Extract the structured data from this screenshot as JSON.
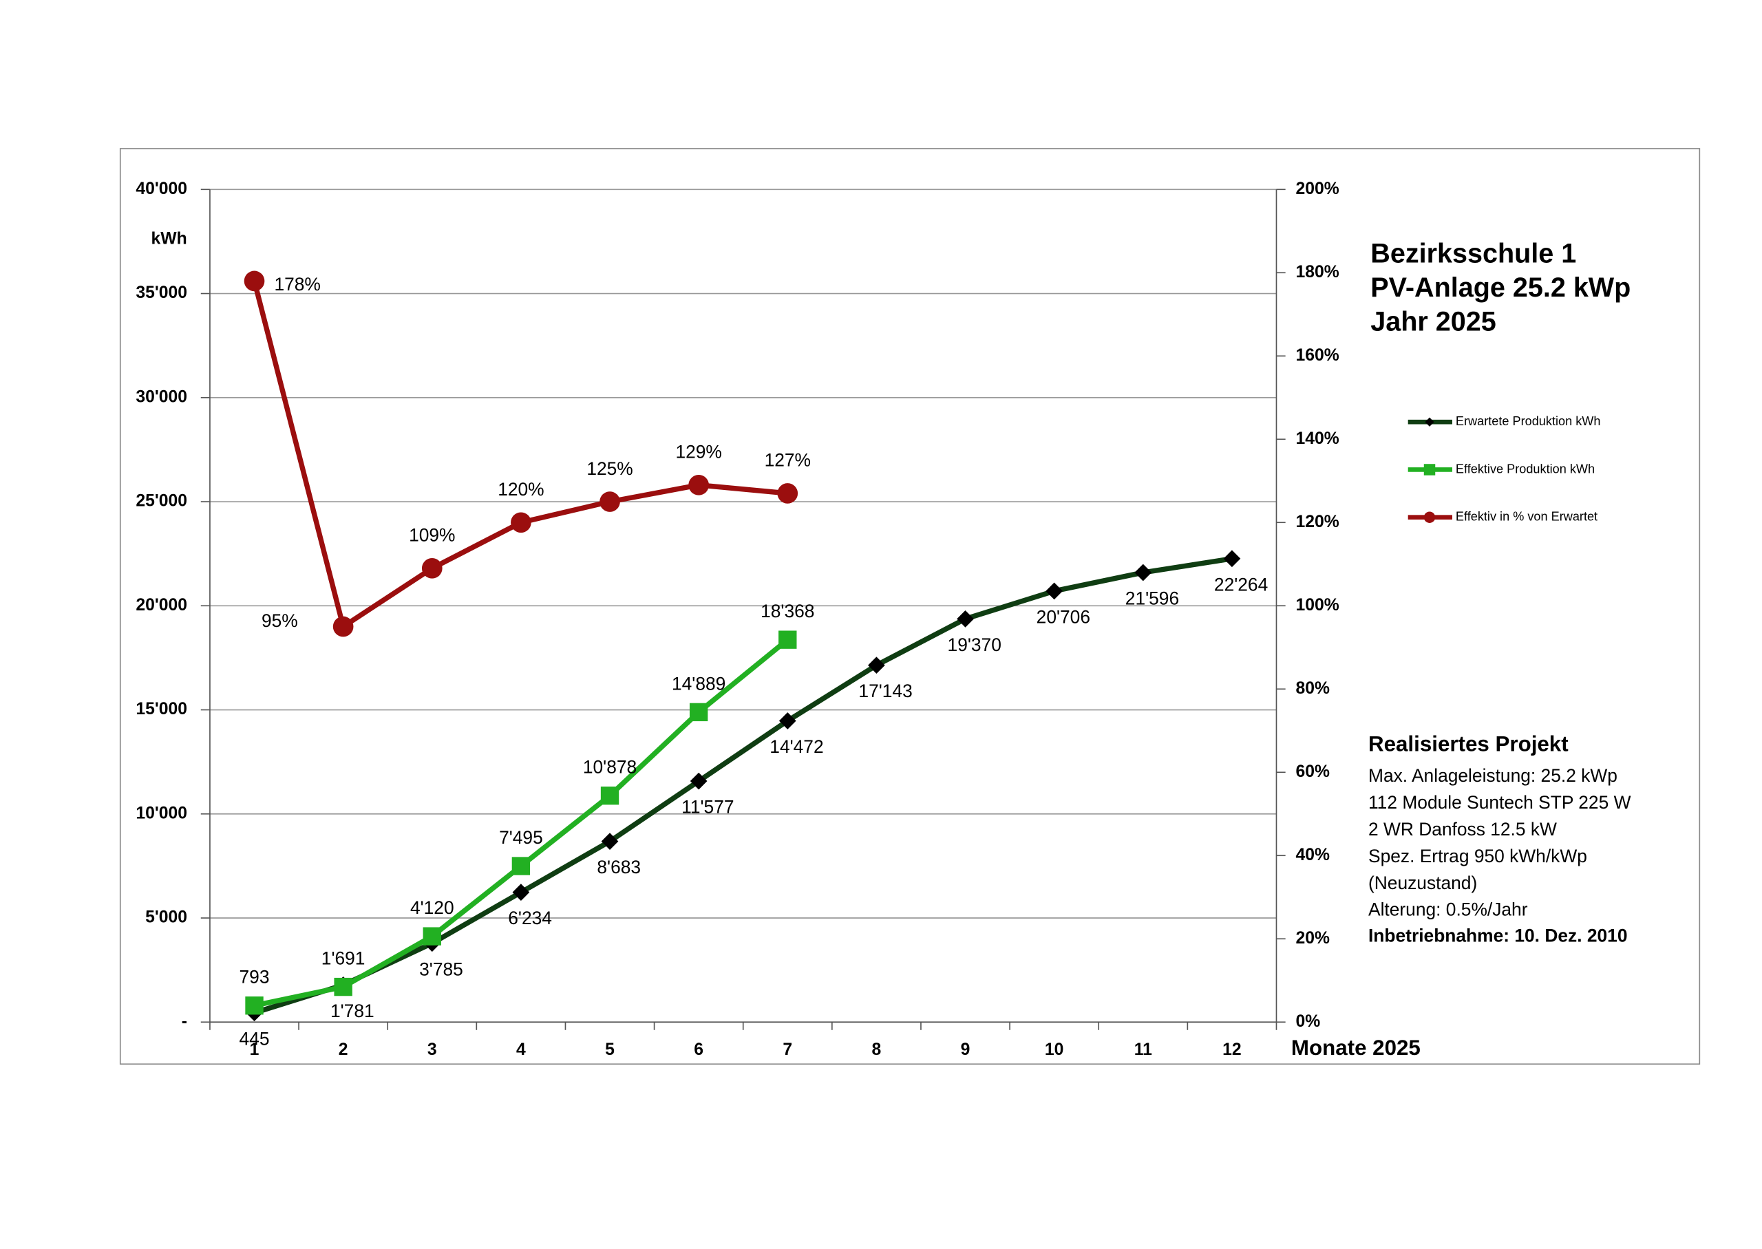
{
  "chart_data": {
    "type": "line",
    "title_lines": [
      "Bezirksschule 1",
      "PV-Anlage 25.2 kWp",
      "Jahr 2025"
    ],
    "y_label": "kWh",
    "x_label": "Monate 2025",
    "categories": [
      "1",
      "2",
      "3",
      "4",
      "5",
      "6",
      "7",
      "8",
      "9",
      "10",
      "11",
      "12"
    ],
    "ylim": [
      0,
      40000
    ],
    "yticks": [
      {
        "value": 0,
        "label": "-"
      },
      {
        "value": 5000,
        "label": "5'000"
      },
      {
        "value": 10000,
        "label": "10'000"
      },
      {
        "value": 15000,
        "label": "15'000"
      },
      {
        "value": 20000,
        "label": "20'000"
      },
      {
        "value": 25000,
        "label": "25'000"
      },
      {
        "value": 30000,
        "label": "30'000"
      },
      {
        "value": 35000,
        "label": "35'000"
      },
      {
        "value": 40000,
        "label": "40'000"
      }
    ],
    "y2lim": [
      0,
      200
    ],
    "y2ticks": [
      {
        "value": 0,
        "label": "0%"
      },
      {
        "value": 20,
        "label": "20%"
      },
      {
        "value": 40,
        "label": "40%"
      },
      {
        "value": 60,
        "label": "60%"
      },
      {
        "value": 80,
        "label": "80%"
      },
      {
        "value": 100,
        "label": "100%"
      },
      {
        "value": 120,
        "label": "120%"
      },
      {
        "value": 140,
        "label": "140%"
      },
      {
        "value": 160,
        "label": "160%"
      },
      {
        "value": 180,
        "label": "180%"
      },
      {
        "value": 200,
        "label": "200%"
      }
    ],
    "grid": true,
    "legend": "right",
    "series": [
      {
        "name": "Erwartete Produktion kWh",
        "color": "#0f3d12",
        "marker": "diamond",
        "marker_color": "#000000",
        "values": [
          445,
          1781,
          3785,
          6234,
          8683,
          11577,
          14472,
          17143,
          19370,
          20706,
          21596,
          22264
        ],
        "value_labels": [
          "445",
          "1'781",
          "3'785",
          "6'234",
          "8'683",
          "11'577",
          "14'472",
          "17'143",
          "19'370",
          "20'706",
          "21'596",
          "22'264"
        ]
      },
      {
        "name": "Effektive Produktion kWh",
        "color": "#22b022",
        "marker": "square",
        "marker_color": "#22b022",
        "values": [
          793,
          1691,
          4120,
          7495,
          10878,
          14889,
          18368,
          null,
          null,
          null,
          null,
          null
        ],
        "value_labels": [
          "793",
          "1'691",
          "4'120",
          "7'495",
          "10'878",
          "14'889",
          "18'368",
          null,
          null,
          null,
          null,
          null
        ]
      },
      {
        "name": "Effektiv in % von Erwartet",
        "color": "#9b0e0e",
        "marker": "circle",
        "marker_color": "#9b0e0e",
        "axis": "y2",
        "values": [
          178,
          95,
          109,
          120,
          125,
          129,
          127,
          null,
          null,
          null,
          null,
          null
        ],
        "value_labels": [
          "178%",
          "95%",
          "109%",
          "120%",
          "125%",
          "129%",
          "127%",
          null,
          null,
          null,
          null,
          null
        ]
      }
    ],
    "annotation": {
      "title": "Realisiertes Projekt",
      "lines": [
        "Max. Anlageleistung: 25.2 kWp",
        "112 Module Suntech STP 225 W",
        "2 WR Danfoss 12.5 kW",
        "Spez. Ertrag 950 kWh/kWp",
        "(Neuzustand)",
        "Alterung: 0.5%/Jahr"
      ],
      "footer": "Inbetriebnahme:  10. Dez. 2010"
    }
  }
}
